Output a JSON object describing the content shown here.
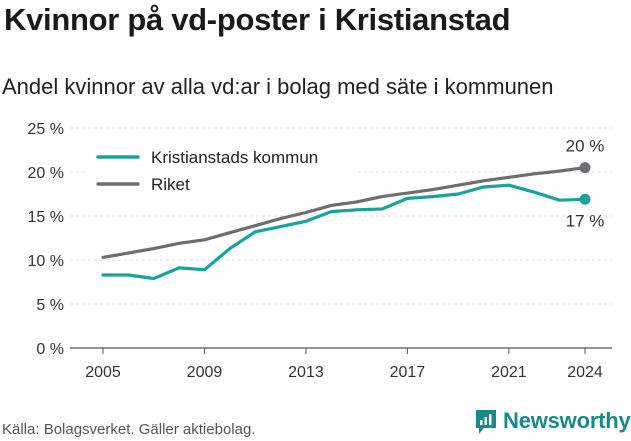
{
  "header": {
    "title": "Kvinnor på vd-poster i Kristianstad",
    "subtitle": "Andel kvinnor av alla vd:ar i bolag med säte i kommunen"
  },
  "footer": {
    "source": "Källa: Bolagsverket. Gäller aktiebolag.",
    "logo_text": "Newsworthy",
    "logo_icon": "newsworthy-logo-icon"
  },
  "chart_data": {
    "type": "line",
    "x": [
      2005,
      2006,
      2007,
      2008,
      2009,
      2010,
      2011,
      2012,
      2013,
      2014,
      2015,
      2016,
      2017,
      2018,
      2019,
      2020,
      2021,
      2022,
      2023,
      2024
    ],
    "series": [
      {
        "name": "Kristianstads kommun",
        "color": "#1aa39a",
        "values": [
          8.3,
          8.3,
          7.9,
          9.1,
          8.9,
          11.3,
          13.2,
          13.8,
          14.4,
          15.5,
          15.7,
          15.8,
          17.0,
          17.2,
          17.5,
          18.3,
          18.5,
          17.7,
          16.8,
          16.9
        ],
        "end_label": "17 %"
      },
      {
        "name": "Riket",
        "color": "#6e6e72",
        "values": [
          10.3,
          10.8,
          11.3,
          11.9,
          12.3,
          13.1,
          13.9,
          14.7,
          15.4,
          16.2,
          16.6,
          17.2,
          17.6,
          18.0,
          18.5,
          19.0,
          19.4,
          19.8,
          20.1,
          20.5
        ],
        "end_label": "20 %"
      }
    ],
    "x_ticks": [
      2005,
      2009,
      2013,
      2017,
      2021,
      2024
    ],
    "y_ticks": [
      0,
      5,
      10,
      15,
      20,
      25
    ],
    "y_tick_labels": [
      "0 %",
      "5 %",
      "10 %",
      "15 %",
      "20 %",
      "25 %"
    ],
    "ylim": [
      0,
      25
    ],
    "xlim": [
      2005,
      2024
    ],
    "grid": "horizontal",
    "legend_position": "top-left"
  }
}
